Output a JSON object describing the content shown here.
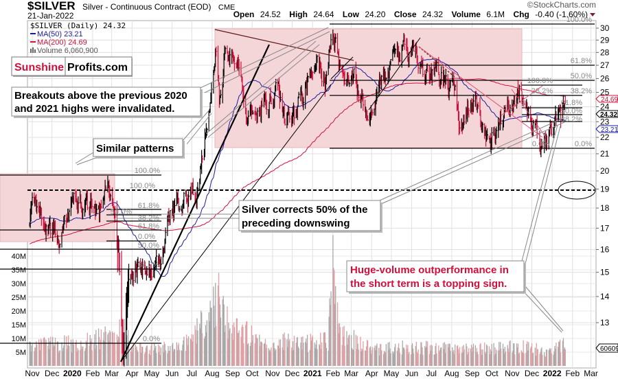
{
  "header": {
    "symbol": "$SILVER",
    "description": "Silver - Continuous Contract (EOD)",
    "exchange": "CME",
    "date": "21-Jan-2022",
    "watermark": "©StockCharts.com",
    "open_label": "Open",
    "open": "24.52",
    "high_label": "High",
    "high": "24.64",
    "low_label": "Low",
    "low": "24.20",
    "close_label": "Close",
    "close": "24.32",
    "volume_label": "Volume",
    "volume": "6.1M",
    "chg_label": "Chg",
    "chg": "-0.40 (-1.60%)"
  },
  "legend": {
    "price": "$SILVER (Daily) 24.32",
    "ma50": "MA(50) 23.21",
    "ma200": "MA(200) 24.69",
    "volume": "Volume 6,060,900"
  },
  "logo": {
    "part1": "Sunshine",
    "part2": "Profits.com"
  },
  "annotations": {
    "breakouts_line1": "Breakouts above the previous 2020",
    "breakouts_line2": "and 2021 highs were invalidated.",
    "similar": "Similar patterns",
    "corrects_line1": "Silver corrects 50% of the",
    "corrects_line2": "preceding downswing",
    "volume_line1": "Huge-volume outperformance in",
    "volume_line2": "the short term is a topping sign."
  },
  "fib_labels": {
    "top_100": "100.0%",
    "top_618": "61.8%",
    "top_50": "50.0%",
    "top_382": "38.2%",
    "top_0": "0.0%",
    "r_100": "100.0%",
    "r_382": "38.2%",
    "r_618": "61.8%",
    "r_50": "50.0%",
    "r_382b": "38.2%",
    "r_0": "0.0%",
    "l_100a": "100.0%",
    "l_100b": "100.0%",
    "l_618": "61.8%",
    "l_50": "50.0%",
    "l_382": "38.2%",
    "l_618b": "61.8%",
    "l_0": "0.0%",
    "l_50b": "50.0%",
    "l_382b": "38.2%",
    "v_0": "0.0%"
  },
  "right_tags": {
    "ma200": "24.69",
    "close": "24.32",
    "ma50": "23.21",
    "volume": "60609"
  },
  "colors": {
    "up": "#000000",
    "down": "#d0103a",
    "ma50": "#1a1aa0",
    "ma200": "#d0103a",
    "vol_up": "#a8a8a8",
    "vol_down": "#e0a0a4",
    "shade": "#f5d6d8"
  },
  "chart_data": {
    "type": "ohlc",
    "scale": "log",
    "grid": true,
    "legend": "top-left",
    "ylim": [
      11.5,
      30.5
    ],
    "y_ticks": [
      30,
      29,
      28,
      27,
      26,
      25,
      24,
      23,
      22,
      21,
      20,
      19,
      18,
      17,
      16,
      15,
      14,
      13
    ],
    "x_ticks": [
      {
        "label": "Nov",
        "date": "2019-11-01"
      },
      {
        "label": "Dec",
        "date": "2019-12-01"
      },
      {
        "label": "2020",
        "date": "2020-01-01",
        "bold": true
      },
      {
        "label": "Feb",
        "date": "2020-02-01"
      },
      {
        "label": "Mar",
        "date": "2020-03-01"
      },
      {
        "label": "Apr",
        "date": "2020-04-01"
      },
      {
        "label": "May",
        "date": "2020-05-01"
      },
      {
        "label": "Jun",
        "date": "2020-06-01"
      },
      {
        "label": "Jul",
        "date": "2020-07-01"
      },
      {
        "label": "Aug",
        "date": "2020-08-01"
      },
      {
        "label": "Sep",
        "date": "2020-09-01"
      },
      {
        "label": "Oct",
        "date": "2020-10-01"
      },
      {
        "label": "Nov",
        "date": "2020-11-01"
      },
      {
        "label": "Dec",
        "date": "2020-12-01"
      },
      {
        "label": "2021",
        "date": "2021-01-01",
        "bold": true
      },
      {
        "label": "Feb",
        "date": "2021-02-01"
      },
      {
        "label": "Mar",
        "date": "2021-03-01"
      },
      {
        "label": "Apr",
        "date": "2021-04-01"
      },
      {
        "label": "May",
        "date": "2021-05-01"
      },
      {
        "label": "Jun",
        "date": "2021-06-01"
      },
      {
        "label": "Jul",
        "date": "2021-07-01"
      },
      {
        "label": "Aug",
        "date": "2021-08-01"
      },
      {
        "label": "Sep",
        "date": "2021-09-01"
      },
      {
        "label": "Oct",
        "date": "2021-10-01"
      },
      {
        "label": "Nov",
        "date": "2021-11-01"
      },
      {
        "label": "Dec",
        "date": "2021-12-01"
      },
      {
        "label": "2022",
        "date": "2022-01-01",
        "bold": true
      },
      {
        "label": "Feb",
        "date": "2022-02-01"
      },
      {
        "label": "Mar",
        "date": "2022-03-01"
      }
    ],
    "volume_ticks": [
      "40M",
      "35M",
      "30M",
      "25M",
      "20M",
      "15M",
      "10M",
      "5M"
    ],
    "price_path": [
      [
        "2019-10-28",
        17.7
      ],
      [
        "2019-11-05",
        18.0
      ],
      [
        "2019-11-20",
        17.0
      ],
      [
        "2019-12-10",
        16.8
      ],
      [
        "2019-12-31",
        17.9
      ],
      [
        "2020-01-08",
        18.3
      ],
      [
        "2020-01-25",
        17.9
      ],
      [
        "2020-02-10",
        17.6
      ],
      [
        "2020-02-24",
        18.8
      ],
      [
        "2020-03-05",
        17.2
      ],
      [
        "2020-03-12",
        15.5
      ],
      [
        "2020-03-18",
        11.8
      ],
      [
        "2020-03-25",
        14.3
      ],
      [
        "2020-04-10",
        15.4
      ],
      [
        "2020-04-25",
        15.0
      ],
      [
        "2020-05-15",
        15.5
      ],
      [
        "2020-05-25",
        17.5
      ],
      [
        "2020-06-15",
        17.8
      ],
      [
        "2020-07-10",
        18.8
      ],
      [
        "2020-07-22",
        22.5
      ],
      [
        "2020-08-06",
        29.3
      ],
      [
        "2020-08-12",
        25.0
      ],
      [
        "2020-08-20",
        27.5
      ],
      [
        "2020-09-10",
        27.0
      ],
      [
        "2020-09-24",
        22.5
      ],
      [
        "2020-10-15",
        24.5
      ],
      [
        "2020-11-09",
        25.0
      ],
      [
        "2020-11-30",
        22.5
      ],
      [
        "2020-12-15",
        24.5
      ],
      [
        "2021-01-05",
        27.5
      ],
      [
        "2021-01-20",
        25.5
      ],
      [
        "2021-02-01",
        29.5
      ],
      [
        "2021-02-10",
        27.2
      ],
      [
        "2021-03-01",
        27.0
      ],
      [
        "2021-03-30",
        24.0
      ],
      [
        "2021-04-20",
        26.0
      ],
      [
        "2021-05-18",
        28.3
      ],
      [
        "2021-06-08",
        28.0
      ],
      [
        "2021-06-20",
        26.0
      ],
      [
        "2021-07-10",
        26.3
      ],
      [
        "2021-08-05",
        25.4
      ],
      [
        "2021-08-12",
        23.5
      ],
      [
        "2021-09-05",
        24.5
      ],
      [
        "2021-09-29",
        21.5
      ],
      [
        "2021-10-15",
        23.2
      ],
      [
        "2021-11-16",
        25.3
      ],
      [
        "2021-11-25",
        23.5
      ],
      [
        "2021-12-15",
        21.5
      ],
      [
        "2022-01-05",
        23.0
      ],
      [
        "2022-01-14",
        22.8
      ],
      [
        "2022-01-21",
        24.32
      ]
    ],
    "volume_path_millions": [
      [
        "2019-10-28",
        8
      ],
      [
        "2020-01-15",
        8
      ],
      [
        "2020-03-10",
        12
      ],
      [
        "2020-03-18",
        15
      ],
      [
        "2020-04-01",
        6
      ],
      [
        "2020-06-15",
        7
      ],
      [
        "2020-07-25",
        18
      ],
      [
        "2020-08-10",
        25
      ],
      [
        "2020-08-25",
        16
      ],
      [
        "2020-09-25",
        12
      ],
      [
        "2020-10-20",
        7
      ],
      [
        "2020-11-10",
        9
      ],
      [
        "2020-12-15",
        8
      ],
      [
        "2021-01-25",
        9
      ],
      [
        "2021-02-01",
        42
      ],
      [
        "2021-02-03",
        30
      ],
      [
        "2021-02-10",
        12
      ],
      [
        "2021-03-01",
        10
      ],
      [
        "2021-04-01",
        6
      ],
      [
        "2021-06-01",
        7
      ],
      [
        "2021-08-01",
        6
      ],
      [
        "2021-09-01",
        6
      ],
      [
        "2021-11-15",
        7
      ],
      [
        "2022-01-01",
        5
      ],
      [
        "2022-01-19",
        9
      ],
      [
        "2022-01-21",
        6.06
      ]
    ],
    "series": [
      {
        "name": "$SILVER (Daily)",
        "kind": "ohlc"
      },
      {
        "name": "MA(50)",
        "kind": "line",
        "last": 23.21
      },
      {
        "name": "MA(200)",
        "kind": "line",
        "last": 24.69
      },
      {
        "name": "Volume",
        "kind": "bar",
        "last": 6060900
      }
    ]
  }
}
